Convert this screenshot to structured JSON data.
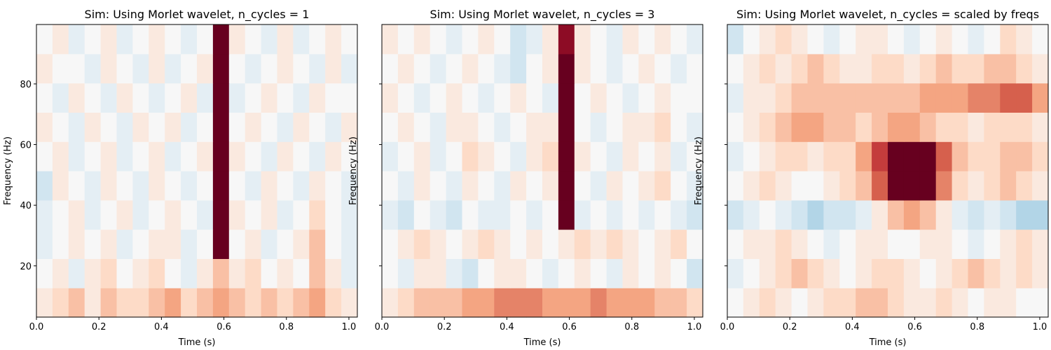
{
  "chart_data": [
    {
      "type": "heatmap",
      "title": "Sim: Using Morlet wavelet, n_cycles = 1",
      "xlabel": "Time (s)",
      "ylabel": "Frequency (Hz)",
      "xlim": [
        0,
        1.027
      ],
      "ylim": [
        3.1,
        99.6
      ],
      "xticks": [
        {
          "value": 0,
          "label": "0.0"
        },
        {
          "value": 0.2,
          "label": "0.2"
        },
        {
          "value": 0.4,
          "label": "0.4"
        },
        {
          "value": 0.6,
          "label": "0.6"
        },
        {
          "value": 0.8,
          "label": "0.8"
        },
        {
          "value": 1.0,
          "label": "1.0"
        }
      ],
      "yticks": [
        20,
        40,
        60,
        80
      ],
      "yticklabels": true,
      "colormap": "RdBu_r",
      "vlim": [
        -1,
        1
      ],
      "z": [
        [
          0.1,
          0.2,
          0.3,
          0.1,
          0.3,
          0.2,
          0.2,
          0.3,
          0.4,
          0.2,
          0.3,
          0.4,
          0.3,
          0.2,
          0.3,
          0.2,
          0.3,
          0.4,
          0.2,
          0.1
        ],
        [
          0,
          0.1,
          -0.1,
          0.1,
          0.2,
          0,
          0.1,
          0.2,
          0,
          -0.1,
          0.1,
          0.3,
          0.1,
          0.2,
          0,
          0.1,
          0,
          0.3,
          0.1,
          -0.1
        ],
        [
          -0.1,
          0,
          0.1,
          0,
          0.1,
          -0.1,
          0,
          0.1,
          0.1,
          -0.1,
          0,
          1,
          0,
          0.1,
          -0.1,
          0,
          0.1,
          0.3,
          0,
          -0.1
        ],
        [
          -0.1,
          0,
          0.1,
          -0.1,
          0,
          0.1,
          -0.1,
          0,
          0.1,
          0,
          -0.1,
          1,
          0.1,
          0,
          0.1,
          -0.1,
          0,
          0.2,
          0,
          -0.1
        ],
        [
          -0.2,
          0.1,
          0,
          -0.1,
          0.1,
          0,
          -0.1,
          0.1,
          0,
          -0.1,
          0,
          1,
          0,
          -0.1,
          0.1,
          0,
          -0.1,
          0.1,
          0,
          -0.1
        ],
        [
          0,
          0.1,
          -0.1,
          0,
          0.1,
          -0.1,
          0,
          0.1,
          -0.1,
          0,
          0.1,
          1,
          0.1,
          0,
          -0.1,
          0.1,
          0,
          -0.1,
          0.1,
          0
        ],
        [
          0.1,
          0,
          -0.1,
          0.1,
          0,
          -0.1,
          0.1,
          0,
          0.1,
          -0.1,
          0,
          1,
          0,
          0.1,
          0,
          -0.1,
          0.1,
          0,
          -0.1,
          0.1
        ],
        [
          0,
          -0.1,
          0.1,
          0,
          -0.1,
          0.1,
          0,
          -0.1,
          0,
          0.1,
          -0.1,
          1,
          -0.1,
          0,
          0.1,
          0,
          -0.1,
          0.1,
          0,
          0
        ],
        [
          0.1,
          0,
          0,
          -0.1,
          0.1,
          0,
          -0.1,
          0.1,
          -0.1,
          0,
          0.1,
          1,
          0,
          -0.1,
          0,
          0.1,
          0,
          -0.1,
          0.1,
          -0.1
        ],
        [
          0,
          0.1,
          -0.1,
          0,
          0.1,
          -0.1,
          0,
          0.1,
          0,
          -0.1,
          0,
          1,
          0.1,
          0,
          -0.1,
          0.1,
          -0.1,
          0,
          0.1,
          0
        ]
      ]
    },
    {
      "type": "heatmap",
      "title": "Sim: Using Morlet wavelet, n_cycles = 3",
      "xlabel": "Time (s)",
      "ylabel": "Frequency (Hz)",
      "xlim": [
        0,
        1.027
      ],
      "ylim": [
        3.1,
        99.6
      ],
      "xticks": [
        {
          "value": 0,
          "label": "0.0"
        },
        {
          "value": 0.2,
          "label": "0.2"
        },
        {
          "value": 0.4,
          "label": "0.4"
        },
        {
          "value": 0.6,
          "label": "0.6"
        },
        {
          "value": 0.8,
          "label": "0.8"
        },
        {
          "value": 1.0,
          "label": "1.0"
        }
      ],
      "yticks": [
        20,
        40,
        60,
        80
      ],
      "yticklabels": false,
      "colormap": "RdBu_r",
      "vlim": [
        -1,
        1
      ],
      "z": [
        [
          0.1,
          0.2,
          0.3,
          0.3,
          0.3,
          0.4,
          0.4,
          0.5,
          0.5,
          0.5,
          0.4,
          0.4,
          0.4,
          0.5,
          0.4,
          0.4,
          0.4,
          0.3,
          0.3,
          0.2
        ],
        [
          0,
          -0.1,
          0.1,
          0.1,
          -0.1,
          -0.2,
          0,
          0.1,
          0.1,
          0,
          -0.1,
          0,
          0.1,
          0,
          -0.1,
          0.1,
          0,
          0.1,
          0,
          -0.2
        ],
        [
          0,
          0.1,
          0.2,
          0.1,
          0,
          0.1,
          0.2,
          0.1,
          0,
          0.1,
          0,
          0.1,
          0.2,
          0.1,
          0.2,
          0.1,
          0,
          0.1,
          0.2,
          0
        ],
        [
          -0.1,
          -0.2,
          0,
          -0.1,
          -0.2,
          0,
          -0.1,
          -0.1,
          0,
          -0.1,
          0,
          1,
          -0.1,
          0,
          -0.1,
          0,
          -0.1,
          0,
          -0.1,
          -0.2
        ],
        [
          0,
          -0.1,
          0.1,
          0,
          -0.1,
          0.1,
          0,
          -0.1,
          0.1,
          0,
          0.1,
          1,
          0,
          -0.1,
          0.1,
          0,
          0.1,
          0.2,
          0,
          -0.1
        ],
        [
          -0.1,
          0,
          0.1,
          -0.1,
          0,
          0.2,
          0.1,
          0,
          -0.1,
          0.1,
          0.2,
          1,
          0.1,
          0,
          -0.1,
          0.1,
          0,
          0.1,
          -0.1,
          0
        ],
        [
          0,
          0.1,
          0,
          -0.1,
          0.1,
          0.1,
          0,
          -0.1,
          0,
          0.1,
          0.1,
          1,
          0,
          -0.1,
          0,
          0.1,
          0.1,
          0.2,
          0,
          -0.1
        ],
        [
          0.1,
          0,
          -0.1,
          0,
          0.1,
          0,
          -0.1,
          0,
          0.1,
          0,
          -0.1,
          1,
          0,
          0.1,
          0,
          -0.1,
          0,
          0.1,
          0,
          0
        ],
        [
          0,
          0.1,
          0,
          -0.1,
          0,
          0.1,
          0,
          -0.1,
          -0.2,
          0,
          0.1,
          1,
          0.1,
          0,
          -0.1,
          0,
          0.1,
          0,
          -0.1,
          0
        ],
        [
          0.1,
          0,
          0.1,
          0,
          -0.1,
          0,
          0.1,
          0,
          -0.2,
          -0.1,
          0.1,
          0.9,
          0.1,
          0,
          -0.1,
          0.1,
          0,
          0.1,
          0,
          -0.1
        ]
      ]
    },
    {
      "type": "heatmap",
      "title": "Sim: Using Morlet wavelet, n_cycles = scaled by freqs",
      "xlabel": "Time (s)",
      "ylabel": "Frequency (Hz)",
      "xlim": [
        0,
        1.027
      ],
      "ylim": [
        3.1,
        99.6
      ],
      "xticks": [
        {
          "value": 0,
          "label": "0.0"
        },
        {
          "value": 0.2,
          "label": "0.2"
        },
        {
          "value": 0.4,
          "label": "0.4"
        },
        {
          "value": 0.6,
          "label": "0.6"
        },
        {
          "value": 0.8,
          "label": "0.8"
        },
        {
          "value": 1.0,
          "label": "1.0"
        }
      ],
      "yticks": [
        20,
        40,
        60,
        80
      ],
      "yticklabels": false,
      "colormap": "RdBu_r",
      "vlim": [
        -1,
        1
      ],
      "z": [
        [
          0,
          0.1,
          0.2,
          0.1,
          0,
          0.1,
          0.2,
          0.2,
          0.3,
          0.3,
          0.2,
          0.1,
          0.1,
          0.2,
          0.1,
          0,
          0.1,
          0.1,
          0,
          0
        ],
        [
          -0.1,
          0,
          0.1,
          0.2,
          0.3,
          0.2,
          0.1,
          0,
          0.1,
          0.2,
          0.2,
          0.1,
          0,
          0.1,
          0.2,
          0.3,
          0.2,
          0.1,
          0.2,
          0.1
        ],
        [
          0,
          0.1,
          0.1,
          0.2,
          0.1,
          0,
          -0.1,
          0,
          0.1,
          0.1,
          0,
          0,
          0.1,
          0.1,
          0,
          -0.1,
          0,
          0.1,
          0.2,
          0.1
        ],
        [
          -0.2,
          -0.1,
          0,
          -0.1,
          -0.2,
          -0.3,
          -0.2,
          -0.2,
          -0.1,
          0.1,
          0.3,
          0.4,
          0.3,
          0.1,
          -0.1,
          -0.2,
          -0.1,
          -0.2,
          -0.3,
          -0.3
        ],
        [
          0,
          0.1,
          0.2,
          0.1,
          0,
          0,
          0.1,
          0.2,
          0.3,
          0.6,
          1,
          1,
          1,
          0.5,
          0.2,
          0.1,
          0.2,
          0.3,
          0.2,
          0.1
        ],
        [
          -0.1,
          0,
          0.1,
          0.2,
          0.2,
          0.1,
          0.2,
          0.2,
          0.4,
          0.7,
          1,
          1,
          1,
          0.6,
          0.3,
          0.2,
          0.2,
          0.3,
          0.3,
          0.2
        ],
        [
          0,
          0.1,
          0.2,
          0.3,
          0.4,
          0.4,
          0.3,
          0.3,
          0.2,
          0.3,
          0.4,
          0.4,
          0.3,
          0.2,
          0.2,
          0.1,
          0.2,
          0.2,
          0.2,
          0.1
        ],
        [
          -0.1,
          0.1,
          0.1,
          0.2,
          0.3,
          0.3,
          0.3,
          0.3,
          0.3,
          0.3,
          0.3,
          0.3,
          0.4,
          0.4,
          0.4,
          0.5,
          0.5,
          0.6,
          0.6,
          0.4
        ],
        [
          0,
          0.1,
          0.2,
          0.1,
          0.2,
          0.3,
          0.2,
          0.1,
          0.1,
          0.2,
          0.2,
          0.1,
          0.2,
          0.3,
          0.2,
          0.2,
          0.3,
          0.3,
          0.2,
          0.1
        ],
        [
          -0.2,
          0,
          0.1,
          0.2,
          0.1,
          0,
          -0.1,
          0,
          0.1,
          0.1,
          0,
          -0.1,
          0,
          0.1,
          0,
          -0.1,
          0,
          0.2,
          0.1,
          0
        ]
      ]
    }
  ]
}
